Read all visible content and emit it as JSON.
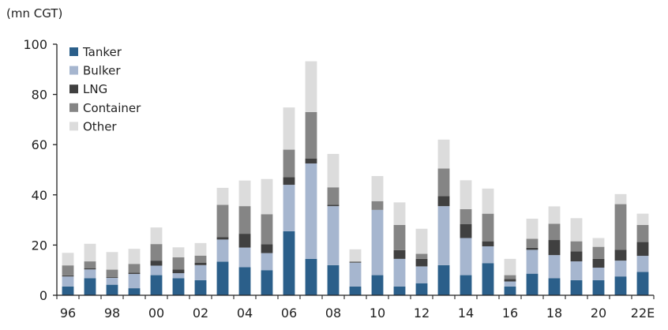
{
  "chart_data": {
    "type": "bar",
    "stacked": true,
    "unit_label": "(mn CGT)",
    "ylim": [
      0,
      100
    ],
    "yticks": [
      0,
      20,
      40,
      60,
      80,
      100
    ],
    "categories": [
      "96",
      "97",
      "98",
      "99",
      "00",
      "01",
      "02",
      "03",
      "04",
      "05",
      "06",
      "07",
      "08",
      "09",
      "10",
      "11",
      "12",
      "13",
      "14",
      "15",
      "16",
      "17",
      "18",
      "19",
      "20",
      "21",
      "22E"
    ],
    "xtick_labels": [
      "96",
      "",
      "98",
      "",
      "00",
      "",
      "02",
      "",
      "04",
      "",
      "06",
      "",
      "08",
      "",
      "10",
      "",
      "12",
      "",
      "14",
      "",
      "16",
      "",
      "18",
      "",
      "20",
      "",
      "22E"
    ],
    "series": [
      {
        "name": "Tanker",
        "color": "#2b5f8a",
        "values": [
          3.5,
          6.8,
          4.2,
          2.8,
          8,
          6.8,
          6,
          13.4,
          11.2,
          10,
          25.5,
          14.5,
          12,
          3.5,
          8,
          3.5,
          4.8,
          12,
          8,
          12.8,
          3.5,
          8.6,
          6.8,
          6,
          6,
          7.5,
          9.3
        ]
      },
      {
        "name": "Bulker",
        "color": "#a6b6cf",
        "values": [
          4,
          3.5,
          2.7,
          5.7,
          3.8,
          2,
          6,
          8.8,
          7.8,
          6.8,
          18.5,
          38,
          23.5,
          9.5,
          26,
          11,
          6.7,
          23.5,
          14.8,
          6.7,
          2,
          9.5,
          9.2,
          7.5,
          5,
          6.3,
          6.4
        ]
      },
      {
        "name": "LNG",
        "color": "#404040",
        "values": [
          0.4,
          0.5,
          0.3,
          0.5,
          2,
          1.5,
          1,
          1,
          5.5,
          3.5,
          3,
          2,
          0.5,
          0.2,
          0,
          3.5,
          3,
          4,
          5.5,
          2,
          1,
          0.8,
          6,
          4,
          3.5,
          4.3,
          5.5
        ]
      },
      {
        "name": "Container",
        "color": "#858585",
        "values": [
          4,
          2.7,
          3,
          3.5,
          6.6,
          4.8,
          2.8,
          12.8,
          11,
          12,
          11,
          18.5,
          7,
          0.3,
          3.5,
          10,
          2,
          11,
          6,
          11,
          1.5,
          3.6,
          6.5,
          4,
          4.8,
          18.2,
          6.8
        ]
      },
      {
        "name": "Other",
        "color": "#dcdcdc",
        "values": [
          5,
          7,
          7,
          6,
          6.6,
          4,
          5,
          6.8,
          10.2,
          14,
          16.8,
          20.2,
          13.3,
          4.8,
          10,
          9,
          10,
          11.5,
          11.5,
          10,
          6.5,
          8,
          6.9,
          9.2,
          3.5,
          4,
          4.5
        ]
      }
    ],
    "legend_position": "top-left",
    "grid": false
  }
}
